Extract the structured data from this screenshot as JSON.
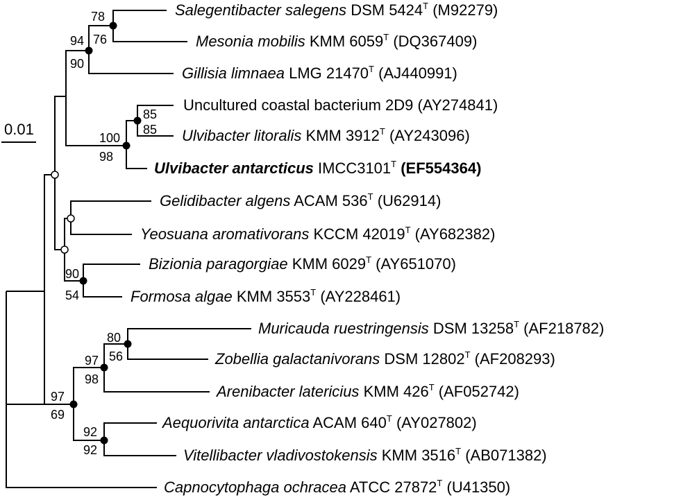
{
  "scale_bar": {
    "label": "0.01"
  },
  "taxa": [
    {
      "species": "Salegentibacter salegens",
      "strain": "DSM 5424",
      "type_mark": "T",
      "accession": "(M92279)",
      "bold": false
    },
    {
      "species": "Mesonia mobilis",
      "strain": "KMM 6059",
      "type_mark": "T",
      "accession": "(DQ367409)",
      "bold": false
    },
    {
      "species": "Gillisia limnaea",
      "strain": "LMG 21470",
      "type_mark": "T",
      "accession": "(AJ440991)",
      "bold": false
    },
    {
      "species": "",
      "strain": "Uncultured coastal bacterium 2D9",
      "type_mark": "",
      "accession": "(AY274841)",
      "bold": false
    },
    {
      "species": "Ulvibacter litoralis",
      "strain": "KMM 3912",
      "type_mark": "T",
      "accession": "(AY243096)",
      "bold": false
    },
    {
      "species": "Ulvibacter antarcticus",
      "strain": "IMCC3101",
      "type_mark": "T",
      "accession": "(EF554364)",
      "bold": true
    },
    {
      "species": "Gelidibacter algens",
      "strain": "ACAM 536",
      "type_mark": "T",
      "accession": "(U62914)",
      "bold": false
    },
    {
      "species": "Yeosuana aromativorans",
      "strain": "KCCM 42019",
      "type_mark": "T",
      "accession": "(AY682382)",
      "bold": false
    },
    {
      "species": "Bizionia paragorgiae",
      "strain": "KMM 6029",
      "type_mark": "T",
      "accession": "(AY651070)",
      "bold": false
    },
    {
      "species": "Formosa algae",
      "strain": "KMM 3553",
      "type_mark": "T",
      "accession": "(AY228461)",
      "bold": false
    },
    {
      "species": "Muricauda ruestringensis",
      "strain": "DSM 13258",
      "type_mark": "T",
      "accession": "(AF218782)",
      "bold": false
    },
    {
      "species": "Zobellia galactanivorans",
      "strain": "DSM 12802",
      "type_mark": "T",
      "accession": "(AF208293)",
      "bold": false
    },
    {
      "species": "Arenibacter latericius",
      "strain": "KMM 426",
      "type_mark": "T",
      "accession": "(AF052742)",
      "bold": false
    },
    {
      "species": "Aequorivita antarctica",
      "strain": "ACAM 640",
      "type_mark": "T",
      "accession": "(AY027802)",
      "bold": false
    },
    {
      "species": "Vitellibacter vladivostokensis",
      "strain": "KMM 3516",
      "type_mark": "T",
      "accession": "(AB071382)",
      "bold": false
    },
    {
      "species": "Capnocytophaga ochracea",
      "strain": "ATCC 27872",
      "type_mark": "T",
      "accession": "(U41350)",
      "bold": false
    }
  ],
  "bootstrap": {
    "salegens_mesonia_nj": "78",
    "salegens_mesonia_ml": "76",
    "gillisia_group_nj": "94",
    "gillisia_group_ml": "90",
    "uncultured_litoralis_nj": "85",
    "uncultured_litoralis_ml": "85",
    "ulvibacter_nj": "100",
    "ulvibacter_ml": "98",
    "bizionia_formosa_nj": "90",
    "bizionia_formosa_ml": "54",
    "muricauda_zobellia_nj": "80",
    "muricauda_zobellia_ml": "56",
    "arenibacter_group_nj": "97",
    "arenibacter_group_ml": "98",
    "aequorivita_vitellibacter_nj": "92",
    "aequorivita_vitellibacter_ml": "92",
    "lower_clade_nj": "97",
    "lower_clade_ml": "69"
  }
}
